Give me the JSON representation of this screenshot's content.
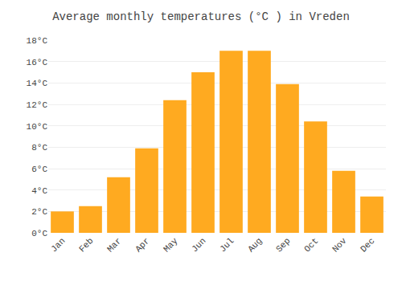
{
  "chart_data": {
    "type": "bar",
    "title": "Average monthly temperatures (°C ) in Vreden",
    "categories": [
      "Jan",
      "Feb",
      "Mar",
      "Apr",
      "May",
      "Jun",
      "Jul",
      "Aug",
      "Sep",
      "Oct",
      "Nov",
      "Dec"
    ],
    "values": [
      2.0,
      2.5,
      5.2,
      7.9,
      12.4,
      15.0,
      17.0,
      17.0,
      13.9,
      10.4,
      5.8,
      3.4
    ],
    "color": "#FFAA20",
    "ylim": [
      0,
      18
    ],
    "yticks": [
      {
        "value": 0,
        "label": "0°C"
      },
      {
        "value": 2,
        "label": "2°C"
      },
      {
        "value": 4,
        "label": "4°C"
      },
      {
        "value": 6,
        "label": "6°C"
      },
      {
        "value": 8,
        "label": "8°C"
      },
      {
        "value": 10,
        "label": "10°C"
      },
      {
        "value": 12,
        "label": "12°C"
      },
      {
        "value": 14,
        "label": "14°C"
      },
      {
        "value": 16,
        "label": "16°C"
      },
      {
        "value": 18,
        "label": "18°C"
      }
    ],
    "grid": true
  }
}
